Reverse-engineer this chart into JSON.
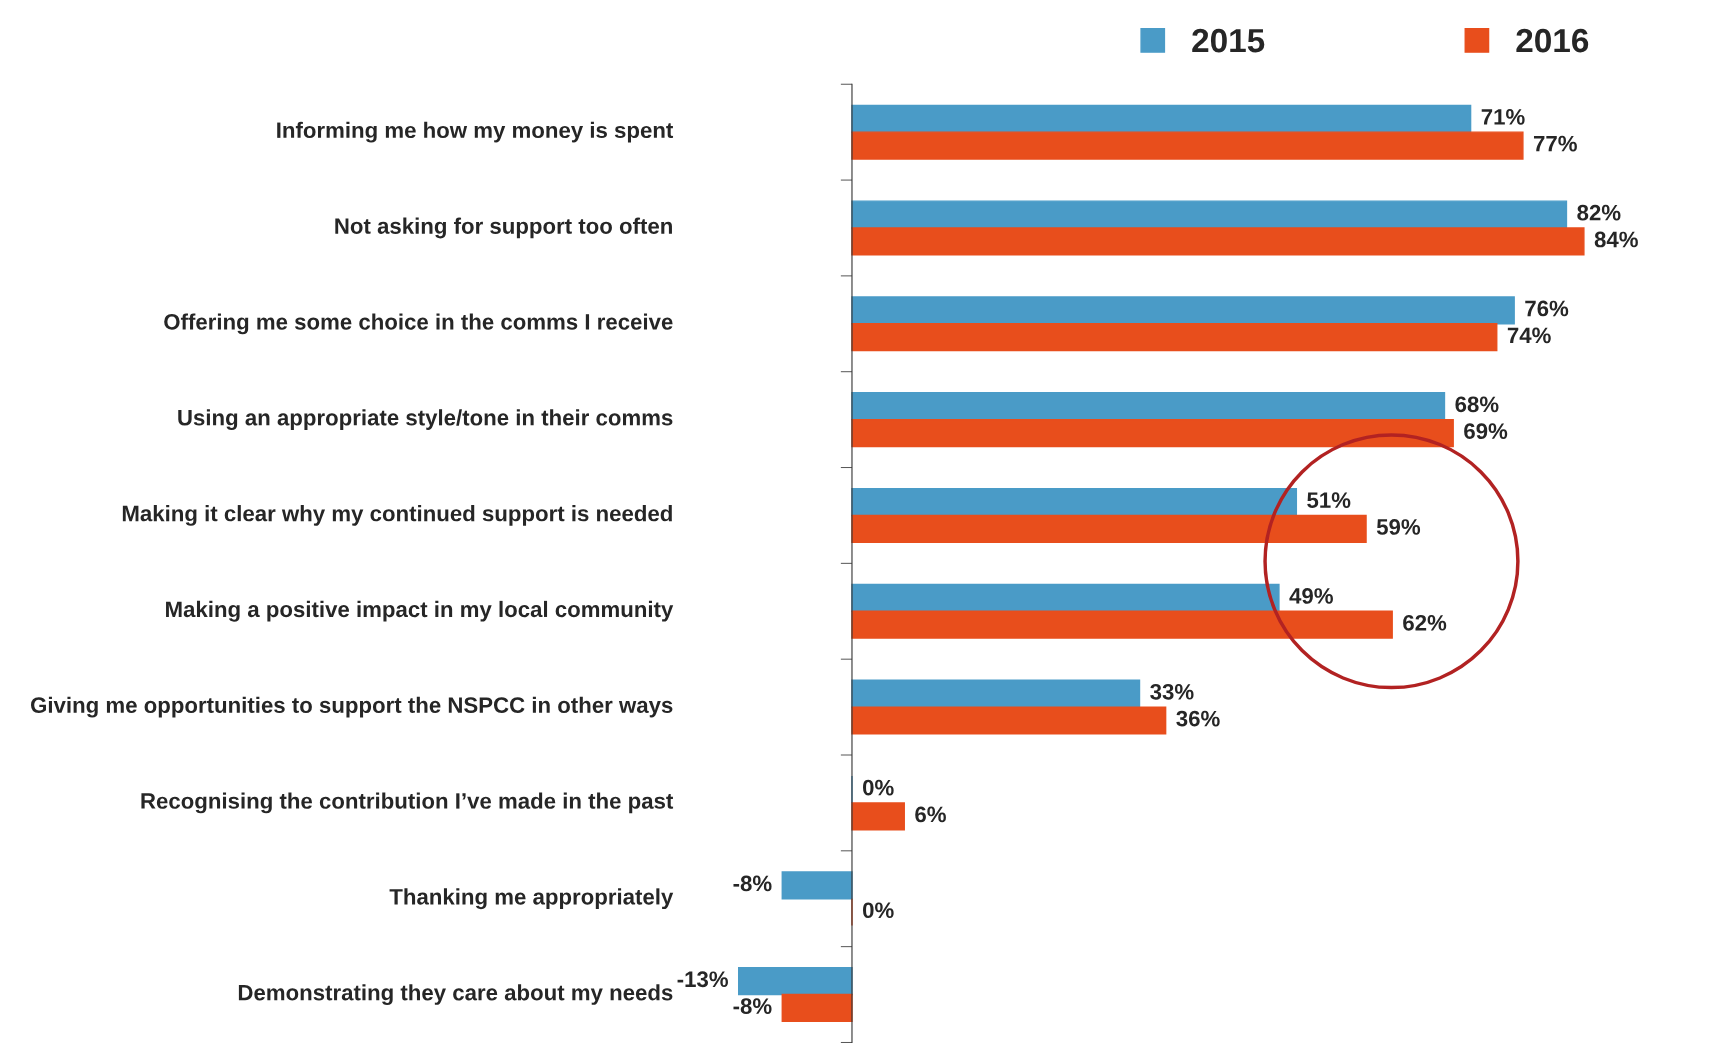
{
  "chart_data": {
    "type": "bar",
    "orientation": "horizontal",
    "legend": "top right",
    "categories": [
      "Informing me how my money is spent",
      "Not asking for support too often",
      "Offering me some choice in the comms I receive",
      "Using an appropriate style/tone in their comms",
      "Making it clear why my continued support is needed",
      "Making a positive impact in my local community",
      "Giving me opportunities to support the NSPCC in other ways",
      "Recognising the contribution I’ve made in the past",
      "Thanking me appropriately",
      "Demonstrating they care about my needs"
    ],
    "series": [
      {
        "name": "2015",
        "color": "#4a9bc7",
        "values": [
          71,
          82,
          76,
          68,
          51,
          49,
          33,
          0,
          -8,
          -13
        ],
        "value_labels": [
          "71%",
          "82%",
          "76%",
          "68%",
          "51%",
          "49%",
          "33%",
          "0%",
          "-8%",
          "-13%"
        ]
      },
      {
        "name": "2016",
        "color": "#e84e1c",
        "values": [
          77,
          84,
          74,
          69,
          59,
          62,
          36,
          6,
          0,
          -8
        ],
        "value_labels": [
          "77%",
          "84%",
          "74%",
          "69%",
          "59%",
          "62%",
          "36%",
          "6%",
          "0%",
          "-8%"
        ]
      }
    ]
  }
}
